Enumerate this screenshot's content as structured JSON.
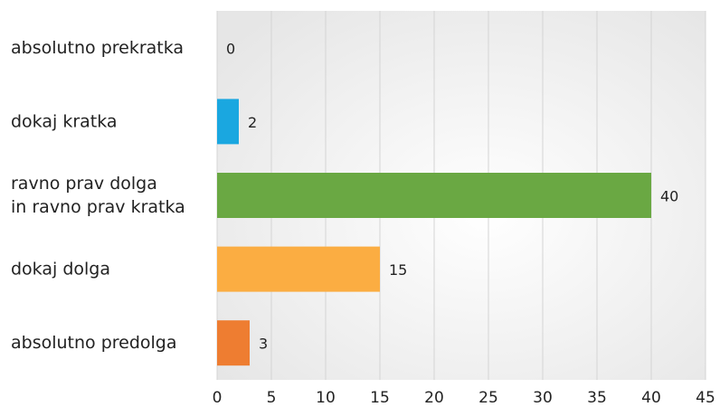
{
  "chart_data": {
    "type": "hbar",
    "categories": [
      "absolutno prekratka",
      "dokaj kratka",
      "ravno prav dolga\nin ravno prav kratka",
      "dokaj dolga",
      "absolutno predolga"
    ],
    "values": [
      0,
      2,
      40,
      15,
      3
    ],
    "colors": [
      "#9e9e9e",
      "#1aa7e0",
      "#6aa843",
      "#fbad42",
      "#ee7d31"
    ],
    "xlim": [
      0,
      45
    ],
    "xticks": [
      0,
      5,
      10,
      15,
      20,
      25,
      30,
      35,
      40,
      45
    ],
    "grid": true
  }
}
